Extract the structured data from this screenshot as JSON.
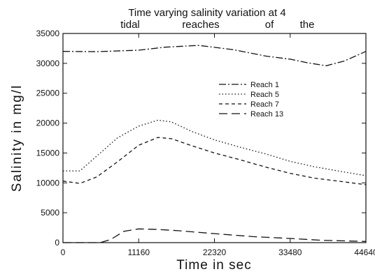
{
  "chart_data": {
    "type": "line",
    "title_line1": "Time varying salinity variation at 4",
    "title_line2": [
      "tidal",
      "reaches",
      "of",
      "the"
    ],
    "xlabel": "Time in sec",
    "ylabel": "Salinity in mg/l",
    "xlim": [
      0,
      44640
    ],
    "ylim": [
      0,
      35000
    ],
    "xticks": [
      0,
      11160,
      22320,
      33480,
      44640
    ],
    "xtick_labels": [
      "0",
      "11160",
      "22320",
      "33480",
      "44640"
    ],
    "yticks": [
      0,
      5000,
      10000,
      15000,
      20000,
      25000,
      30000,
      35000
    ],
    "ytick_labels": [
      "0",
      "5000",
      "10000",
      "15000",
      "20000",
      "25000",
      "30000",
      "35000"
    ],
    "grid": false,
    "legend_position": "center-right",
    "series": [
      {
        "name": "Reach 1",
        "dash": "10,3,2,3",
        "x": [
          0,
          5000,
          11160,
          15000,
          20000,
          25000,
          30000,
          33480,
          36000,
          38800,
          41500,
          44640
        ],
        "y": [
          32000,
          31950,
          32200,
          32700,
          33000,
          32300,
          31200,
          30700,
          30100,
          29600,
          30400,
          32000
        ]
      },
      {
        "name": "Reach 5",
        "dash": "1.5,3",
        "x": [
          0,
          2500,
          5000,
          8000,
          11160,
          14000,
          16000,
          19000,
          22320,
          26000,
          30000,
          33480,
          37000,
          40500,
          44640
        ],
        "y": [
          12000,
          12000,
          14500,
          17500,
          19500,
          20500,
          20200,
          18600,
          17200,
          16000,
          14800,
          13600,
          12700,
          12000,
          11200
        ]
      },
      {
        "name": "Reach 7",
        "dash": "5,4",
        "x": [
          0,
          2500,
          5000,
          8000,
          11160,
          14000,
          16000,
          19000,
          22320,
          26000,
          30000,
          33480,
          37000,
          40500,
          44640
        ],
        "y": [
          10300,
          9900,
          11000,
          13500,
          16300,
          17600,
          17400,
          16200,
          15000,
          13900,
          12600,
          11600,
          10800,
          10300,
          9700
        ]
      },
      {
        "name": "Reach 13",
        "dash": "12,6",
        "x": [
          0,
          5500,
          7000,
          9000,
          11160,
          14000,
          17000,
          22320,
          28000,
          33480,
          38000,
          44640
        ],
        "y": [
          0,
          0,
          500,
          1900,
          2300,
          2200,
          2000,
          1500,
          1000,
          700,
          400,
          200
        ]
      }
    ]
  }
}
